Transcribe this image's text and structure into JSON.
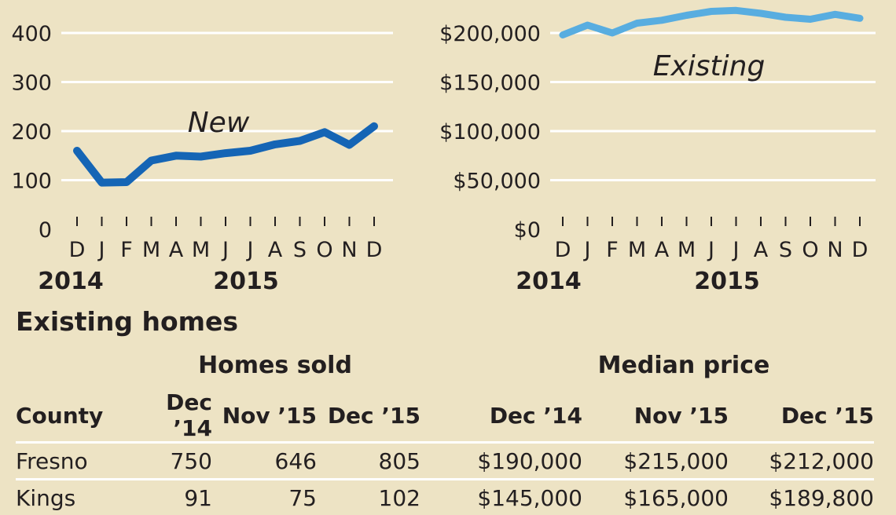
{
  "chart_data": [
    {
      "type": "line",
      "categories": [
        "D",
        "J",
        "F",
        "M",
        "A",
        "M",
        "J",
        "J",
        "A",
        "S",
        "O",
        "N",
        "D"
      ],
      "x_groups": [
        "2014",
        "2015"
      ],
      "yticks": [
        "0",
        "100",
        "200",
        "300",
        "400"
      ],
      "ylim": [
        0,
        400
      ],
      "grid": true,
      "series": [
        {
          "name": "New",
          "color": "#1565b5",
          "values": [
            160,
            95,
            96,
            140,
            150,
            148,
            155,
            160,
            173,
            180,
            198,
            172,
            210
          ]
        }
      ]
    },
    {
      "type": "line",
      "categories": [
        "D",
        "J",
        "F",
        "M",
        "A",
        "M",
        "J",
        "J",
        "A",
        "S",
        "O",
        "N",
        "D"
      ],
      "x_groups": [
        "2014",
        "2015"
      ],
      "yticks": [
        "$0",
        "$50,000",
        "$100,000",
        "$150,000",
        "$200,000"
      ],
      "ylim": [
        0,
        200000
      ],
      "grid": true,
      "series": [
        {
          "name": "Existing",
          "color": "#58ade0",
          "values": [
            198000,
            208000,
            200000,
            210000,
            213000,
            218000,
            222000,
            223000,
            220000,
            216000,
            214000,
            219000,
            215000
          ]
        }
      ]
    }
  ],
  "table": {
    "title": "Existing homes",
    "group_headers": [
      "Homes sold",
      "Median price"
    ],
    "columns": [
      "County",
      "Dec ’14",
      "Nov ’15",
      "Dec ’15",
      "Dec ’14",
      "Nov ’15",
      "Dec ’15"
    ],
    "rows": [
      [
        "Fresno",
        "750",
        "646",
        "805",
        "$190,000",
        "$215,000",
        "$212,000"
      ],
      [
        "Kings",
        "91",
        "75",
        "102",
        "$145,000",
        "$165,000",
        "$189,800"
      ]
    ]
  },
  "colors": {
    "background": "#ede3c4",
    "gridline": "#ffffff",
    "new_line": "#1565b5",
    "existing_line": "#58ade0"
  }
}
